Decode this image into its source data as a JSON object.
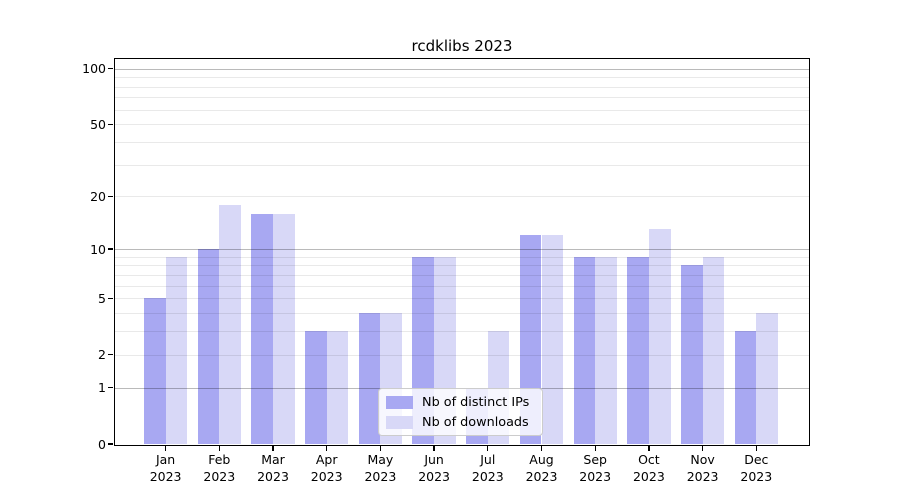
{
  "title": "rcdklibs 2023",
  "chart_data": {
    "type": "bar",
    "title": "rcdklibs 2023",
    "months": [
      "Jan",
      "Feb",
      "Mar",
      "Apr",
      "May",
      "Jun",
      "Jul",
      "Aug",
      "Sep",
      "Oct",
      "Nov",
      "Dec"
    ],
    "year": "2023",
    "categories": [
      "Jan 2023",
      "Feb 2023",
      "Mar 2023",
      "Apr 2023",
      "May 2023",
      "Jun 2023",
      "Jul 2023",
      "Aug 2023",
      "Sep 2023",
      "Oct 2023",
      "Nov 2023",
      "Dec 2023"
    ],
    "series": [
      {
        "name": "Nb of distinct IPs",
        "color": "#a8a8f2",
        "values": [
          5,
          10,
          16,
          3,
          4,
          9,
          1,
          12,
          9,
          9,
          8,
          3
        ]
      },
      {
        "name": "Nb of downloads",
        "color": "#d8d8f7",
        "values": [
          9,
          18,
          16,
          3,
          4,
          9,
          3,
          12,
          9,
          13,
          9,
          4
        ]
      }
    ],
    "xlabel": "",
    "ylabel": "",
    "yscale": "log1p",
    "ylim": [
      0,
      113
    ],
    "yticks_labeled": [
      100,
      50,
      20,
      10,
      5,
      2,
      1,
      0
    ],
    "yticks_major_grid": [
      1,
      10,
      100
    ],
    "yticks_minor_grid": [
      2,
      3,
      4,
      5,
      6,
      7,
      8,
      9,
      20,
      30,
      40,
      50,
      60,
      70,
      80,
      90
    ],
    "grid": true,
    "legend_position": "lower center"
  }
}
